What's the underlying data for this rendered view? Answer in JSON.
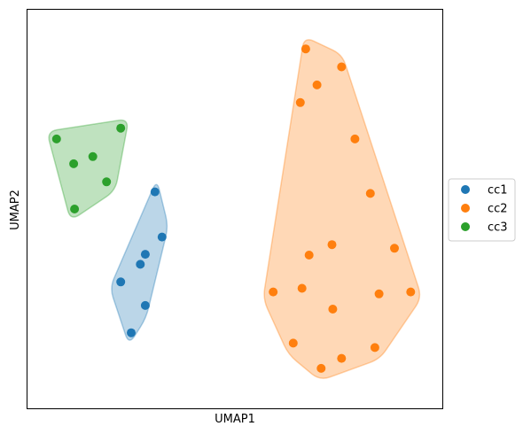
{
  "chart_data": {
    "type": "scatter",
    "title": "",
    "xlabel": "UMAP1",
    "ylabel": "UMAP2",
    "xlim": [
      0,
      100
    ],
    "ylim": [
      0,
      100
    ],
    "grid": false,
    "ticks": false,
    "legend_position": "right-center",
    "series": [
      {
        "name": "cc1",
        "color": "#1f77b4",
        "hull": true,
        "points": [
          {
            "x": 30.8,
            "y": 54.3
          },
          {
            "x": 32.5,
            "y": 43.0
          },
          {
            "x": 28.5,
            "y": 38.7
          },
          {
            "x": 27.3,
            "y": 36.2
          },
          {
            "x": 22.6,
            "y": 31.8
          },
          {
            "x": 28.5,
            "y": 25.9
          },
          {
            "x": 25.1,
            "y": 19.1
          }
        ]
      },
      {
        "name": "cc2",
        "color": "#ff7f0e",
        "hull": true,
        "points": [
          {
            "x": 67.0,
            "y": 90.0
          },
          {
            "x": 75.6,
            "y": 85.5
          },
          {
            "x": 69.7,
            "y": 81.0
          },
          {
            "x": 65.7,
            "y": 76.6
          },
          {
            "x": 78.8,
            "y": 67.5
          },
          {
            "x": 82.5,
            "y": 53.9
          },
          {
            "x": 73.3,
            "y": 41.1
          },
          {
            "x": 88.3,
            "y": 40.2
          },
          {
            "x": 67.8,
            "y": 38.5
          },
          {
            "x": 66.1,
            "y": 30.2
          },
          {
            "x": 59.2,
            "y": 29.3
          },
          {
            "x": 84.6,
            "y": 28.8
          },
          {
            "x": 92.2,
            "y": 29.3
          },
          {
            "x": 73.5,
            "y": 25.0
          },
          {
            "x": 64.0,
            "y": 16.5
          },
          {
            "x": 75.6,
            "y": 12.7
          },
          {
            "x": 83.6,
            "y": 15.4
          },
          {
            "x": 70.7,
            "y": 10.2
          }
        ]
      },
      {
        "name": "cc3",
        "color": "#2ca02c",
        "hull": true,
        "points": [
          {
            "x": 22.6,
            "y": 70.2
          },
          {
            "x": 7.2,
            "y": 67.5
          },
          {
            "x": 15.9,
            "y": 63.1
          },
          {
            "x": 11.3,
            "y": 61.3
          },
          {
            "x": 19.2,
            "y": 56.8
          },
          {
            "x": 11.5,
            "y": 50.0
          }
        ]
      }
    ]
  }
}
